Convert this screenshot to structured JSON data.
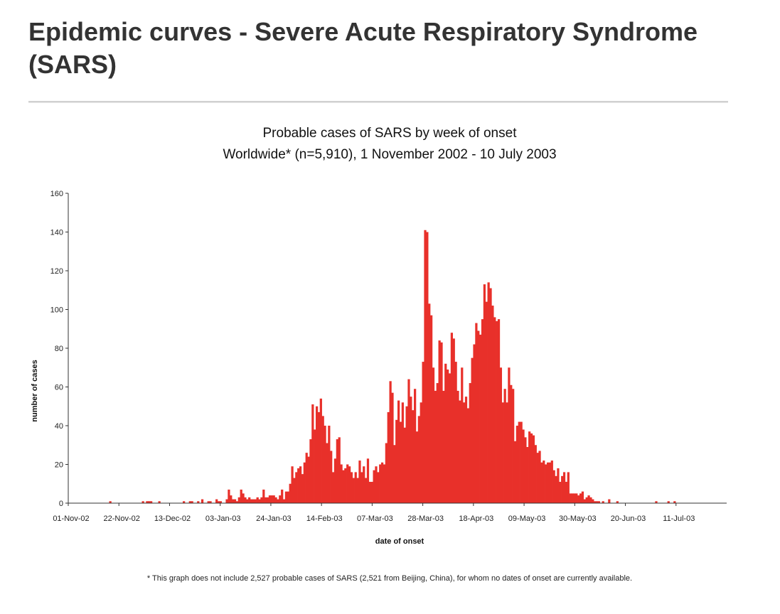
{
  "page": {
    "title": "Epidemic curves - Severe Acute Respiratory Syndrome (SARS)"
  },
  "chart_data": {
    "type": "bar",
    "title": "Probable cases of SARS by week of onset",
    "subtitle": "Worldwide* (n=5,910), 1 November 2002 - 10 July 2003",
    "xlabel": "date of onset",
    "ylabel": "number of cases",
    "ylim": [
      0,
      160
    ],
    "y_ticks": [
      0,
      20,
      40,
      60,
      80,
      100,
      120,
      140,
      160
    ],
    "x_tick_labels": [
      "01-Nov-02",
      "22-Nov-02",
      "13-Dec-02",
      "03-Jan-03",
      "24-Jan-03",
      "14-Feb-03",
      "07-Mar-03",
      "28-Mar-03",
      "18-Apr-03",
      "09-May-03",
      "30-May-03",
      "20-Jun-03",
      "11-Jul-03"
    ],
    "x_start": "2002-11-01",
    "x_end": "2003-07-14",
    "bar_color": "#e8302a",
    "grid": false,
    "footnote": "* This graph does not include 2,527 probable cases of SARS (2,521 from Beijing, China), for whom no dates of onset are currently available.",
    "values": [
      0,
      0,
      0,
      0,
      0,
      0,
      0,
      0,
      0,
      0,
      0,
      0,
      0,
      0,
      0,
      0,
      0,
      0,
      0,
      0,
      1,
      0,
      0,
      0,
      0,
      0,
      0,
      0,
      0,
      0,
      0,
      0,
      0,
      0,
      0,
      0,
      1,
      0,
      1,
      1,
      1,
      0,
      0,
      0,
      1,
      0,
      0,
      0,
      0,
      0,
      0,
      0,
      0,
      0,
      0,
      0,
      1,
      0,
      0,
      1,
      1,
      0,
      0,
      1,
      0,
      2,
      0,
      0,
      1,
      1,
      0,
      0,
      2,
      1,
      1,
      0,
      0,
      2,
      7,
      4,
      2,
      2,
      1,
      3,
      7,
      5,
      3,
      2,
      3,
      2,
      2,
      2,
      3,
      2,
      3,
      7,
      3,
      3,
      4,
      4,
      4,
      3,
      2,
      4,
      7,
      2,
      6,
      6,
      10,
      19,
      13,
      16,
      18,
      19,
      15,
      21,
      26,
      24,
      33,
      51,
      38,
      50,
      47,
      54,
      45,
      40,
      31,
      40,
      27,
      16,
      23,
      33,
      34,
      20,
      17,
      18,
      20,
      19,
      16,
      13,
      16,
      13,
      22,
      16,
      19,
      13,
      23,
      11,
      11,
      17,
      19,
      16,
      20,
      21,
      20,
      31,
      47,
      63,
      57,
      30,
      43,
      53,
      42,
      52,
      39,
      50,
      64,
      55,
      48,
      59,
      37,
      45,
      52,
      73,
      141,
      140,
      103,
      97,
      70,
      58,
      62,
      84,
      83,
      58,
      72,
      69,
      67,
      88,
      85,
      73,
      58,
      53,
      70,
      52,
      55,
      49,
      62,
      75,
      82,
      93,
      89,
      87,
      95,
      113,
      104,
      114,
      111,
      102,
      96,
      94,
      95,
      70,
      52,
      59,
      52,
      70,
      61,
      59,
      32,
      40,
      42,
      42,
      38,
      34,
      29,
      37,
      36,
      35,
      30,
      26,
      27,
      21,
      22,
      20,
      21,
      21,
      22,
      17,
      14,
      18,
      11,
      14,
      16,
      11,
      16,
      5,
      5,
      5,
      5,
      4,
      5,
      6,
      2,
      3,
      4,
      3,
      2,
      1,
      1,
      1,
      0,
      1,
      0,
      0,
      2,
      0,
      0,
      0,
      1,
      0,
      0,
      0,
      0,
      0,
      0,
      0,
      0,
      0,
      0,
      0,
      0,
      0,
      0,
      0,
      0,
      0,
      0,
      1,
      0,
      0,
      0,
      0,
      0,
      1,
      0,
      0,
      1,
      0,
      0,
      0,
      0,
      0,
      0,
      0,
      0,
      0,
      0,
      0,
      0,
      0,
      0,
      0,
      0,
      0,
      0,
      0,
      0,
      0,
      0,
      0,
      0,
      0
    ]
  }
}
